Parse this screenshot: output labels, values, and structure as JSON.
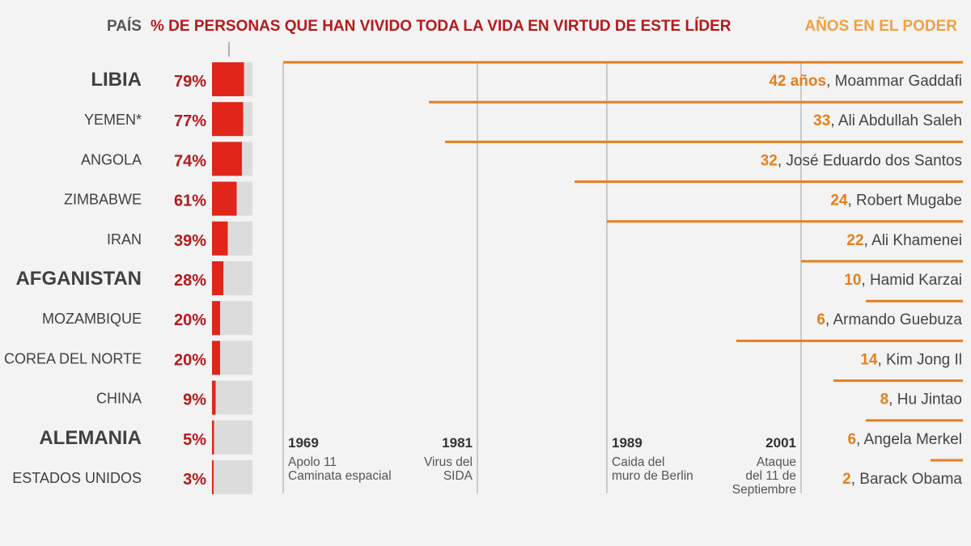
{
  "header": {
    "country_col": "PAÍS",
    "percent_col": "% DE PERSONAS QUE HAN VIVIDO TODA LA VIDA EN VIRTUD DE ESTE LÍDER",
    "years_col": "AÑOS EN EL PODER"
  },
  "colors": {
    "bar": "#e0261b",
    "bar_bg": "#dcdcdc",
    "percent_text": "#b5191b",
    "years_orange": "#e57f1d",
    "country_text": "#404040",
    "leader_text": "#444444",
    "timeline_grid": "#bdbdbd"
  },
  "chart_data": {
    "type": "bar",
    "categories": [
      "LIBIA",
      "YEMEN*",
      "ANGOLA",
      "ZIMBABWE",
      "IRAN",
      "AFGANISTAN",
      "MOZAMBIQUE",
      "COREA DEL NORTE",
      "CHINA",
      "ALEMANIA",
      "ESTADOS UNIDOS"
    ],
    "series": [
      {
        "values": [
          79,
          77,
          74,
          61,
          39,
          28,
          20,
          20,
          9,
          5,
          3
        ]
      }
    ],
    "percent_labels": [
      "79%",
      "77%",
      "74%",
      "61%",
      "39%",
      "28%",
      "20%",
      "20%",
      "9%",
      "5%",
      "3%"
    ],
    "leaders": [
      {
        "years_label": "42 años",
        "name": ", Moammar Gaddafi",
        "years": 42
      },
      {
        "years_label": "33",
        "name": ", Ali Abdullah Saleh",
        "years": 33
      },
      {
        "years_label": "32",
        "name": ", José Eduardo dos Santos",
        "years": 32
      },
      {
        "years_label": "24",
        "name": ", Robert Mugabe",
        "years": 24
      },
      {
        "years_label": "22",
        "name": ", Ali Khamenei",
        "years": 22
      },
      {
        "years_label": "10",
        "name": ", Hamid Karzai",
        "years": 10
      },
      {
        "years_label": "6",
        "name": ", Armando Guebuza",
        "years": 6
      },
      {
        "years_label": "14",
        "name": ", Kim Jong Il",
        "years": 14
      },
      {
        "years_label": "8",
        "name": ", Hu Jintao",
        "years": 8
      },
      {
        "years_label": "6",
        "name": ", Angela Merkel",
        "years": 6
      },
      {
        "years_label": "2",
        "name": ", Barack Obama",
        "years": 2
      }
    ],
    "timeline": {
      "range": [
        1969,
        2011
      ],
      "events": [
        {
          "year": "1969",
          "lines": [
            "Apolo 11",
            "Caminata espacial"
          ]
        },
        {
          "year": "1981",
          "lines": [
            "Virus del",
            "SIDA"
          ]
        },
        {
          "year": "1989",
          "lines": [
            "Caida del",
            "muro de Berlin"
          ]
        },
        {
          "year": "2001",
          "lines": [
            "Ataque",
            "del 11 de",
            "Septiembre"
          ]
        }
      ]
    },
    "xlim": [
      0,
      100
    ]
  }
}
